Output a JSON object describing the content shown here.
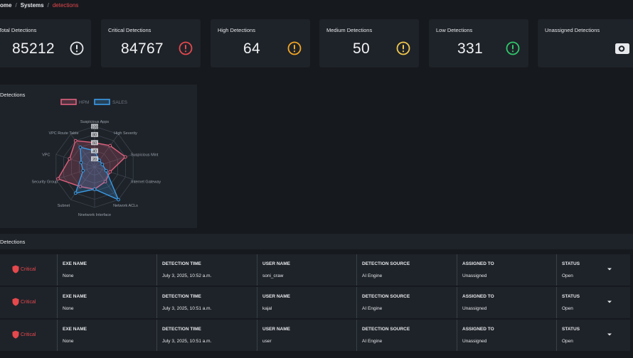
{
  "breadcrumb": {
    "home": "ome",
    "systems": "Systems",
    "current": "detections"
  },
  "cards": [
    {
      "title": "Total Detections",
      "value": "85212",
      "icon": "exclamation-circle-icon",
      "color": "#e6e8eb"
    },
    {
      "title": "Critical Detections",
      "value": "84767",
      "icon": "exclamation-circle-icon",
      "color": "#e5484d"
    },
    {
      "title": "High Detections",
      "value": "64",
      "icon": "exclamation-circle-icon",
      "color": "#f5a623"
    },
    {
      "title": "Medium Detections",
      "value": "50",
      "icon": "exclamation-circle-icon",
      "color": "#f2c94c"
    },
    {
      "title": "Low Detections",
      "value": "331",
      "icon": "exclamation-circle-icon",
      "color": "#30c96b"
    },
    {
      "title": "Unassigned Detections",
      "value": "",
      "icon": "camera-icon",
      "color": "#e6e8eb"
    }
  ],
  "radar": {
    "title": "Detections",
    "legend": [
      {
        "name": "HPM",
        "color": "#e0607e"
      },
      {
        "name": "SALES",
        "color": "#3b9be6"
      }
    ],
    "ticks": [
      "100",
      "80",
      "60",
      "40",
      "20"
    ],
    "axes": [
      "Suspicious Apps",
      "High Severity",
      "Suspicious Mint",
      "Internet Gateway",
      "Network ACLs",
      "Nnetwork Interface",
      "Subnet",
      "Security Group",
      "VPC",
      "VPC Route Table"
    ]
  },
  "chart_data": {
    "type": "radar",
    "categories": [
      "Suspicious Apps",
      "High Severity",
      "Suspicious Mint",
      "Internet Gateway",
      "Network ACLs",
      "Nnetwork Interface",
      "Subnet",
      "Security Group",
      "VPC",
      "VPC Route Table"
    ],
    "series": [
      {
        "name": "HPM",
        "values": [
          60,
          65,
          80,
          40,
          45,
          55,
          60,
          95,
          65,
          80
        ]
      },
      {
        "name": "SALES",
        "values": [
          40,
          20,
          20,
          30,
          100,
          55,
          80,
          30,
          35,
          60
        ]
      }
    ],
    "rlim": [
      0,
      100
    ]
  },
  "table": {
    "title": "Detections",
    "severity_icon": "shield-icon",
    "chevron_icon": "chevron-down-icon",
    "headers": [
      "EXE NAME",
      "DETECTION TIME",
      "USER NAME",
      "DETECTION SOURCE",
      "ASSIGNED TO",
      "STATUS"
    ],
    "rows": [
      {
        "severity": "Critical",
        "values": [
          "None",
          "July 3, 2025, 10:52 a.m.",
          "soni_craw",
          "AI Engine",
          "Unassigned",
          "Open"
        ]
      },
      {
        "severity": "Critical",
        "values": [
          "None",
          "July 3, 2025, 10:51 a.m.",
          "kajal",
          "AI Engine",
          "Unassigned",
          "Open"
        ]
      },
      {
        "severity": "Critical",
        "values": [
          "None",
          "July 3, 2025, 10:51 a.m.",
          "user",
          "AI Engine",
          "Unassigned",
          "Open"
        ]
      }
    ]
  }
}
